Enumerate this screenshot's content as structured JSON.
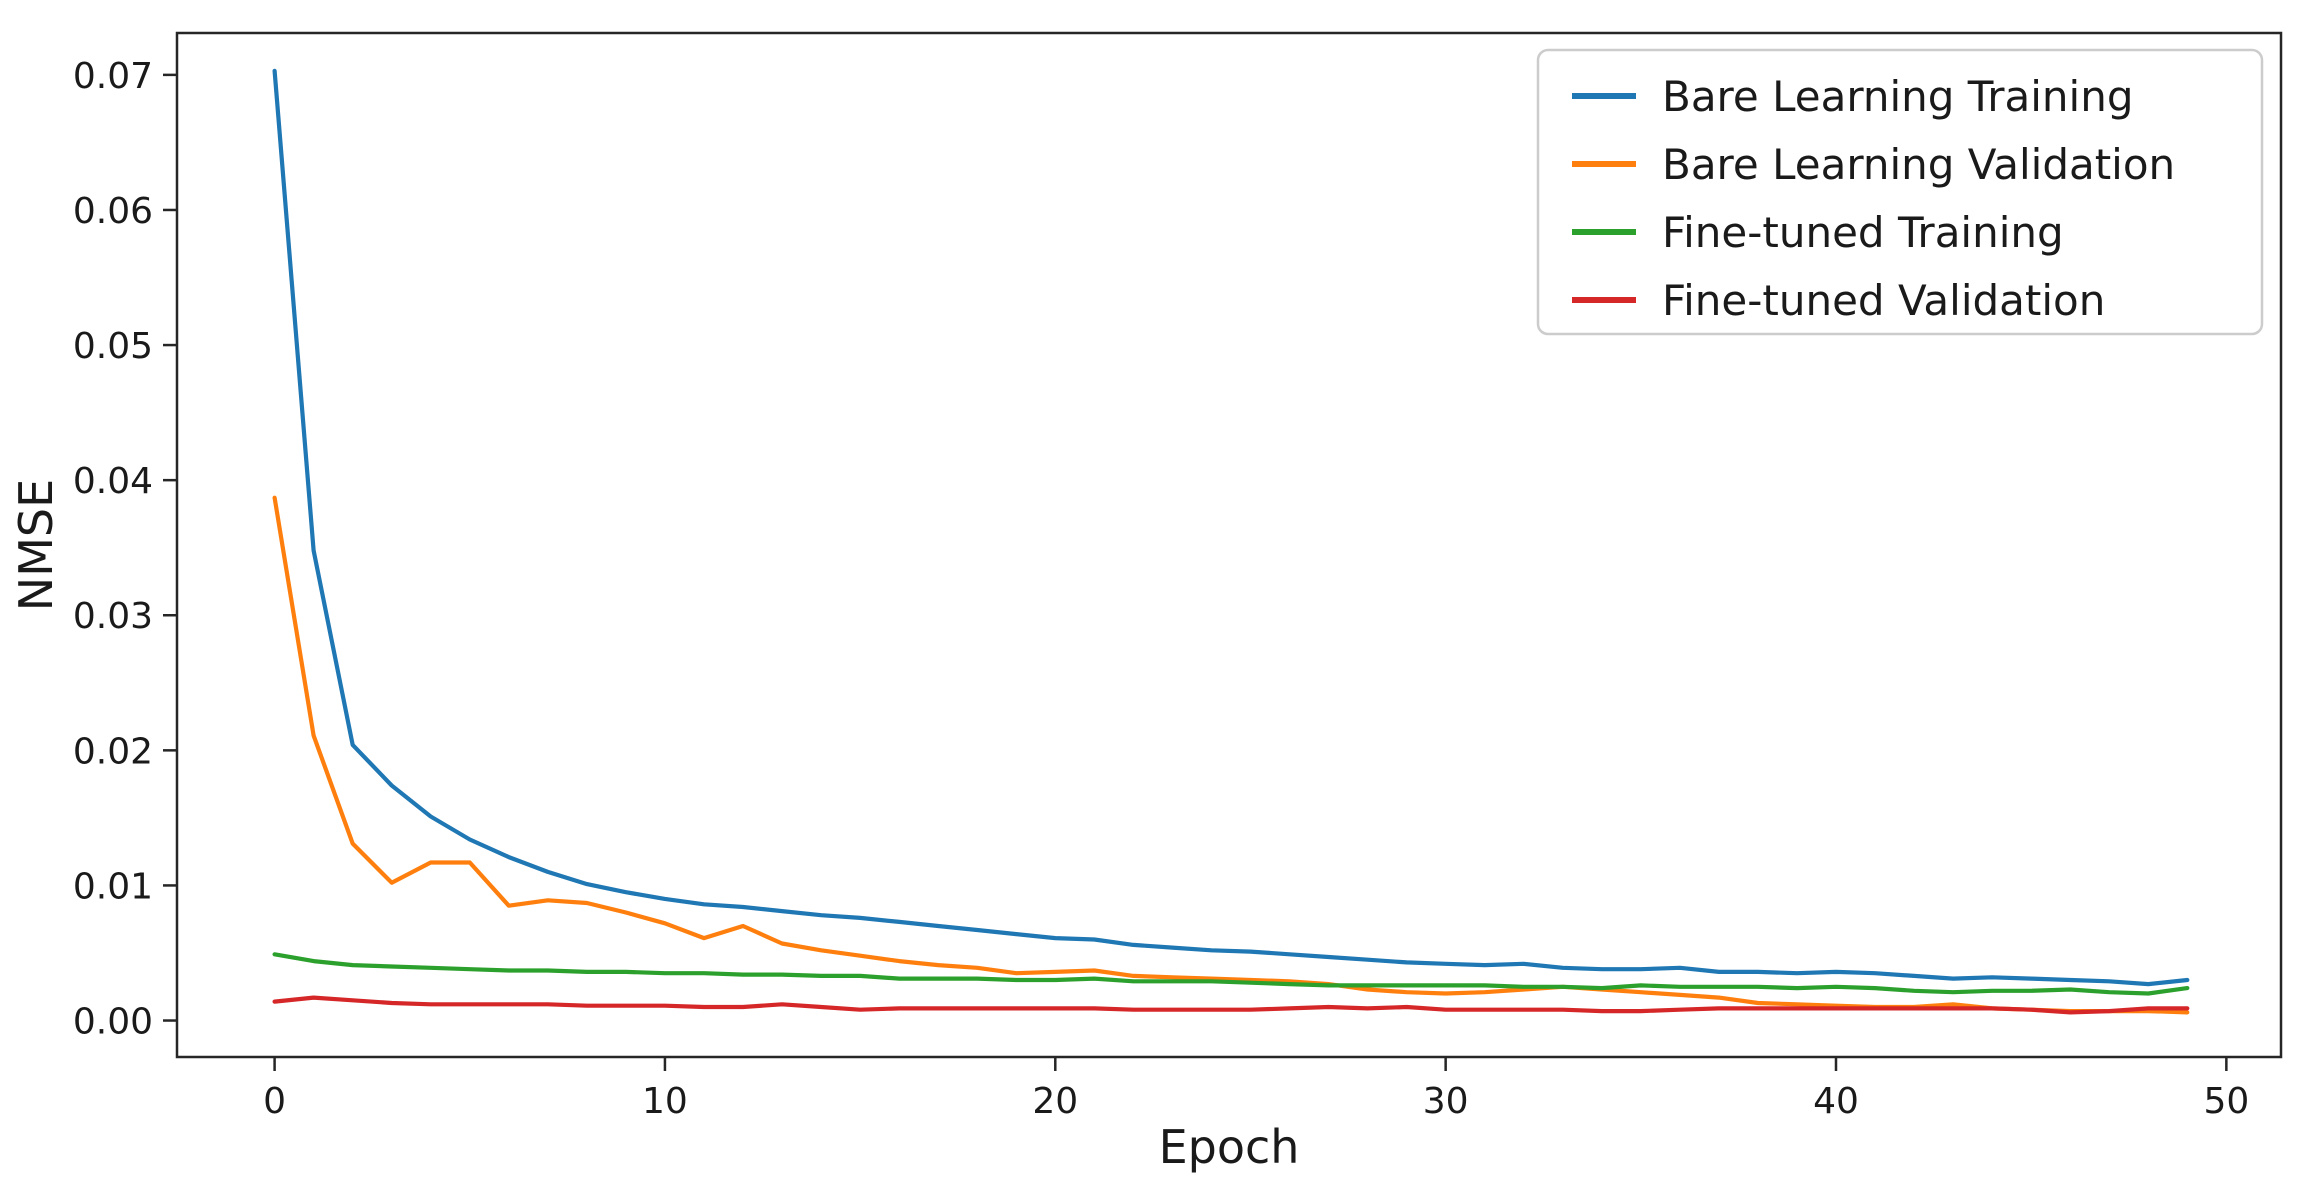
{
  "chart_data": {
    "type": "line",
    "title": "",
    "xlabel": "Epoch",
    "ylabel": "NMSE",
    "grid": false,
    "legend_position": "upper right",
    "xlim": [
      -2.5,
      51.4
    ],
    "ylim": [
      -0.0027,
      0.0731
    ],
    "xticks": {
      "values": [
        0,
        10,
        20,
        30,
        40,
        50
      ],
      "labels": [
        "0",
        "10",
        "20",
        "30",
        "40",
        "50"
      ]
    },
    "yticks": {
      "values": [
        0.0,
        0.01,
        0.02,
        0.03,
        0.04,
        0.05,
        0.06,
        0.07
      ],
      "labels": [
        "0.00",
        "0.01",
        "0.02",
        "0.03",
        "0.04",
        "0.05",
        "0.06",
        "0.07"
      ]
    },
    "x": [
      0,
      1,
      2,
      3,
      4,
      5,
      6,
      7,
      8,
      9,
      10,
      11,
      12,
      13,
      14,
      15,
      16,
      17,
      18,
      19,
      20,
      21,
      22,
      23,
      24,
      25,
      26,
      27,
      28,
      29,
      30,
      31,
      32,
      33,
      34,
      35,
      36,
      37,
      38,
      39,
      40,
      41,
      42,
      43,
      44,
      45,
      46,
      47,
      48,
      49
    ],
    "series": [
      {
        "name": "Bare Learning Training",
        "color": "#1f77b4",
        "values": [
          0.0703,
          0.0348,
          0.0204,
          0.0174,
          0.0151,
          0.0134,
          0.0121,
          0.011,
          0.0101,
          0.0095,
          0.009,
          0.0086,
          0.0084,
          0.0081,
          0.0078,
          0.0076,
          0.0073,
          0.007,
          0.0067,
          0.0064,
          0.0061,
          0.006,
          0.0056,
          0.0054,
          0.0052,
          0.0051,
          0.0049,
          0.0047,
          0.0045,
          0.0043,
          0.0042,
          0.0041,
          0.0042,
          0.0039,
          0.0038,
          0.0038,
          0.0039,
          0.0036,
          0.0036,
          0.0035,
          0.0036,
          0.0035,
          0.0033,
          0.0031,
          0.0032,
          0.0031,
          0.003,
          0.0029,
          0.0027,
          0.003
        ]
      },
      {
        "name": "Bare Learning Validation",
        "color": "#ff7f0e",
        "values": [
          0.0387,
          0.0211,
          0.0131,
          0.0102,
          0.0117,
          0.0117,
          0.0085,
          0.0089,
          0.0087,
          0.008,
          0.0072,
          0.0061,
          0.007,
          0.0057,
          0.0052,
          0.0048,
          0.0044,
          0.0041,
          0.0039,
          0.0035,
          0.0036,
          0.0037,
          0.0033,
          0.0032,
          0.0031,
          0.003,
          0.0029,
          0.0027,
          0.0023,
          0.0021,
          0.002,
          0.0021,
          0.0023,
          0.0025,
          0.0023,
          0.0021,
          0.0019,
          0.0017,
          0.0013,
          0.0012,
          0.0011,
          0.001,
          0.001,
          0.0012,
          0.0009,
          0.0008,
          0.0007,
          0.0007,
          0.0007,
          0.0006
        ]
      },
      {
        "name": "Fine-tuned Training",
        "color": "#2ca02c",
        "values": [
          0.0049,
          0.0044,
          0.0041,
          0.004,
          0.0039,
          0.0038,
          0.0037,
          0.0037,
          0.0036,
          0.0036,
          0.0035,
          0.0035,
          0.0034,
          0.0034,
          0.0033,
          0.0033,
          0.0031,
          0.0031,
          0.0031,
          0.003,
          0.003,
          0.0031,
          0.0029,
          0.0029,
          0.0029,
          0.0028,
          0.0027,
          0.0026,
          0.0026,
          0.0026,
          0.0026,
          0.0026,
          0.0025,
          0.0025,
          0.0024,
          0.0026,
          0.0025,
          0.0025,
          0.0025,
          0.0024,
          0.0025,
          0.0024,
          0.0022,
          0.0021,
          0.0022,
          0.0022,
          0.0023,
          0.0021,
          0.002,
          0.0024
        ]
      },
      {
        "name": "Fine-tuned Validation",
        "color": "#d62728",
        "values": [
          0.0014,
          0.0017,
          0.0015,
          0.0013,
          0.0012,
          0.0012,
          0.0012,
          0.0012,
          0.0011,
          0.0011,
          0.0011,
          0.001,
          0.001,
          0.0012,
          0.001,
          0.0008,
          0.0009,
          0.0009,
          0.0009,
          0.0009,
          0.0009,
          0.0009,
          0.0008,
          0.0008,
          0.0008,
          0.0008,
          0.0009,
          0.001,
          0.0009,
          0.001,
          0.0008,
          0.0008,
          0.0008,
          0.0008,
          0.0007,
          0.0007,
          0.0008,
          0.0009,
          0.0009,
          0.0009,
          0.0009,
          0.0009,
          0.0009,
          0.0009,
          0.0009,
          0.0008,
          0.0006,
          0.0007,
          0.0009,
          0.0009
        ]
      }
    ],
    "axis_color": "#262626",
    "legend_border_color": "#cccccc",
    "background_color": "#ffffff"
  }
}
